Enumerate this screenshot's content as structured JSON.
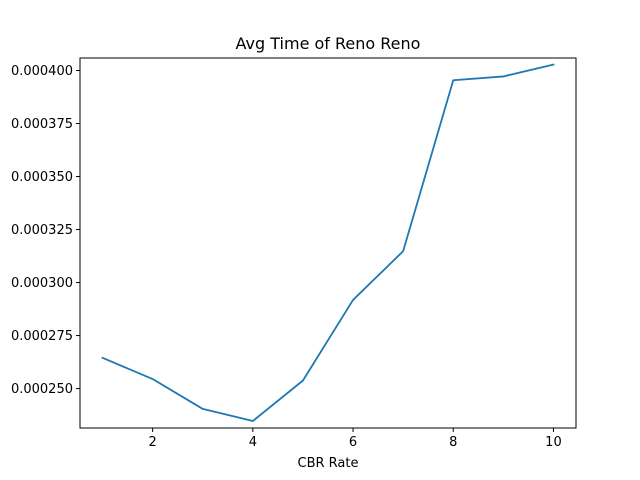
{
  "chart_data": {
    "type": "line",
    "title": "Avg Time of Reno Reno",
    "xlabel": "CBR Rate",
    "ylabel": "",
    "grid": false,
    "xlim": [
      0.55,
      10.45
    ],
    "ylim": [
      0.0002314,
      0.0004059
    ],
    "xticks": [
      2,
      4,
      6,
      8,
      10
    ],
    "xtick_labels": [
      "2",
      "4",
      "6",
      "8",
      "10"
    ],
    "yticks": [
      0.00025,
      0.000275,
      0.0003,
      0.000325,
      0.00035,
      0.000375,
      0.0004
    ],
    "ytick_labels": [
      "0.000250",
      "0.000275",
      "0.000300",
      "0.000325",
      "0.000350",
      "0.000375",
      "0.000400"
    ],
    "series": [
      {
        "color": "#1f77b4",
        "x": [
          1,
          2,
          3,
          4,
          5,
          6,
          7,
          8,
          9,
          10
        ],
        "y": [
          0.0002645,
          0.0002545,
          0.0002404,
          0.0002347,
          0.0002538,
          0.0002918,
          0.0003148,
          0.0003954,
          0.0003972,
          0.0004028
        ]
      }
    ]
  }
}
